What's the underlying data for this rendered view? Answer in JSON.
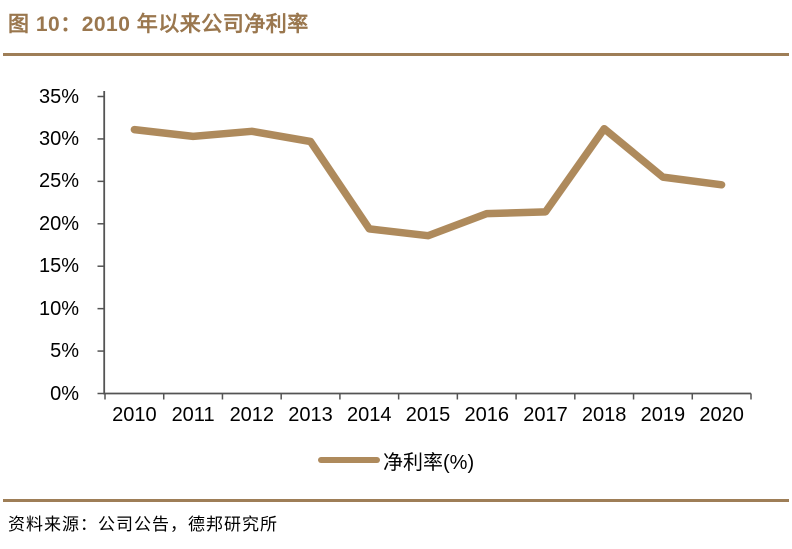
{
  "figure": {
    "title": "图 10：2010 年以来公司净利率",
    "source": "资料来源：公司公告，德邦研究所"
  },
  "colors": {
    "accent_brown": "#9e7e57",
    "title_text": "#9a774e",
    "series_line": "#ae8a5c",
    "axis": "#545454",
    "label_text": "#000000",
    "background": "#ffffff"
  },
  "chart_data": {
    "type": "line",
    "title": "2010 年以来公司净利率",
    "categories": [
      "2010",
      "2011",
      "2012",
      "2013",
      "2014",
      "2015",
      "2016",
      "2017",
      "2018",
      "2019",
      "2020"
    ],
    "series": [
      {
        "name": "净利率(%)",
        "values": [
          31.1,
          30.3,
          30.9,
          29.7,
          19.4,
          18.6,
          21.2,
          21.4,
          31.2,
          25.5,
          24.6
        ],
        "color": "#ae8a5c"
      }
    ],
    "xlabel": "",
    "ylabel": "",
    "ylim": [
      0,
      35
    ],
    "ytick_step": 5,
    "ytick_labels": [
      "0%",
      "5%",
      "10%",
      "15%",
      "20%",
      "25%",
      "30%",
      "35%"
    ],
    "grid": false,
    "legend_position": "bottom"
  }
}
